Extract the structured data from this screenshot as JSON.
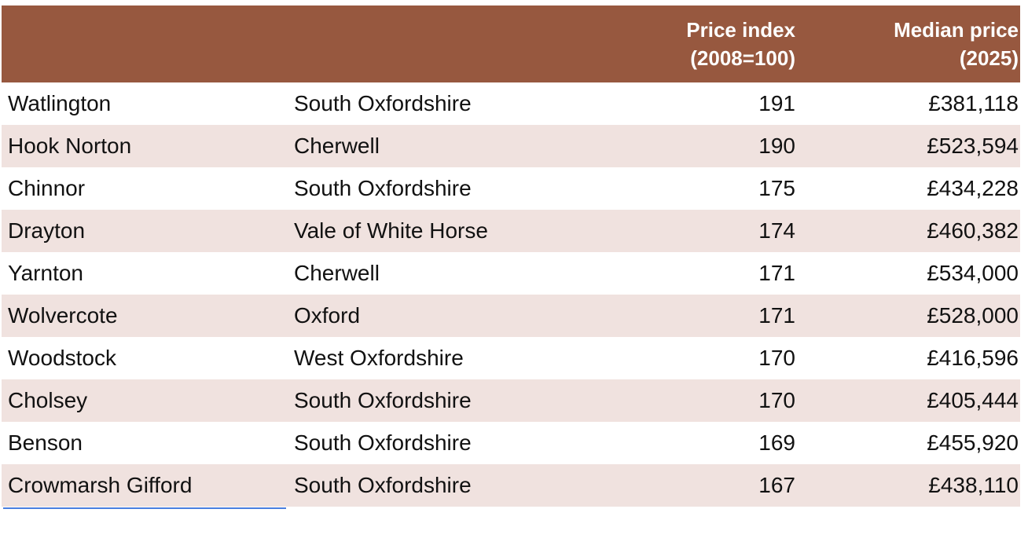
{
  "table": {
    "header": {
      "col1": "",
      "col2": "",
      "col3": "Price index\n(2008=100)",
      "col4": "Median price\n(2025)"
    },
    "colors": {
      "header_bg": "#97583f",
      "header_text": "#ffffff",
      "alt_row_bg": "#f0e2df",
      "selection": "#4a7fe0"
    },
    "rows": [
      {
        "place": "Watlington",
        "district": "South Oxfordshire",
        "index": "191",
        "price": "£381,118"
      },
      {
        "place": "Hook Norton",
        "district": "Cherwell",
        "index": "190",
        "price": "£523,594"
      },
      {
        "place": "Chinnor",
        "district": "South Oxfordshire",
        "index": "175",
        "price": "£434,228"
      },
      {
        "place": "Drayton",
        "district": "Vale of White Horse",
        "index": "174",
        "price": "£460,382"
      },
      {
        "place": "Yarnton",
        "district": "Cherwell",
        "index": "171",
        "price": "£534,000"
      },
      {
        "place": "Wolvercote",
        "district": "Oxford",
        "index": "171",
        "price": "£528,000"
      },
      {
        "place": "Woodstock",
        "district": "West Oxfordshire",
        "index": "170",
        "price": "£416,596"
      },
      {
        "place": "Cholsey",
        "district": "South Oxfordshire",
        "index": "170",
        "price": "£405,444"
      },
      {
        "place": "Benson",
        "district": "South Oxfordshire",
        "index": "169",
        "price": "£455,920"
      },
      {
        "place": "Crowmarsh Gifford",
        "district": "South Oxfordshire",
        "index": "167",
        "price": "£438,110"
      }
    ]
  }
}
